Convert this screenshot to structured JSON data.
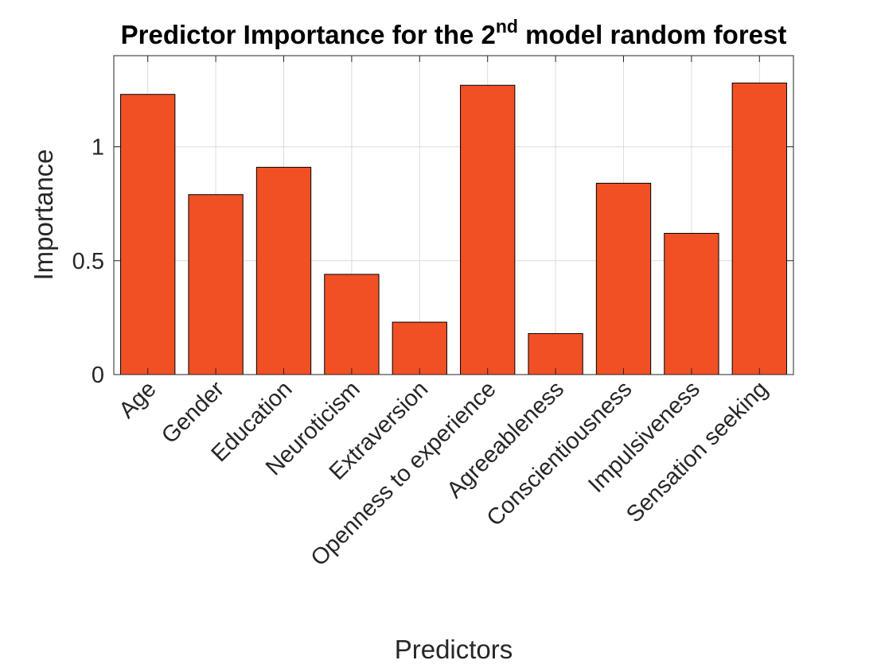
{
  "chart_data": {
    "type": "bar",
    "title": "Predictor Importance for the 2",
    "title_superscript": "nd",
    "title_suffix": " model random forest",
    "xlabel": "Predictors",
    "ylabel": "Importance",
    "categories": [
      "Age",
      "Gender",
      "Education",
      "Neuroticism",
      "Extraversion",
      "Openness to experience",
      "Agreeableness",
      "Conscientiousness",
      "Impulsiveness",
      "Sensation seeking"
    ],
    "values": [
      1.23,
      0.79,
      0.91,
      0.44,
      0.23,
      1.27,
      0.18,
      0.84,
      0.62,
      1.28
    ],
    "ylim": [
      0,
      1.4
    ],
    "yticks": [
      0,
      0.5,
      1
    ],
    "ytick_labels": [
      "0",
      "0.5",
      "1"
    ],
    "grid": true,
    "bar_color": "#F15025"
  }
}
